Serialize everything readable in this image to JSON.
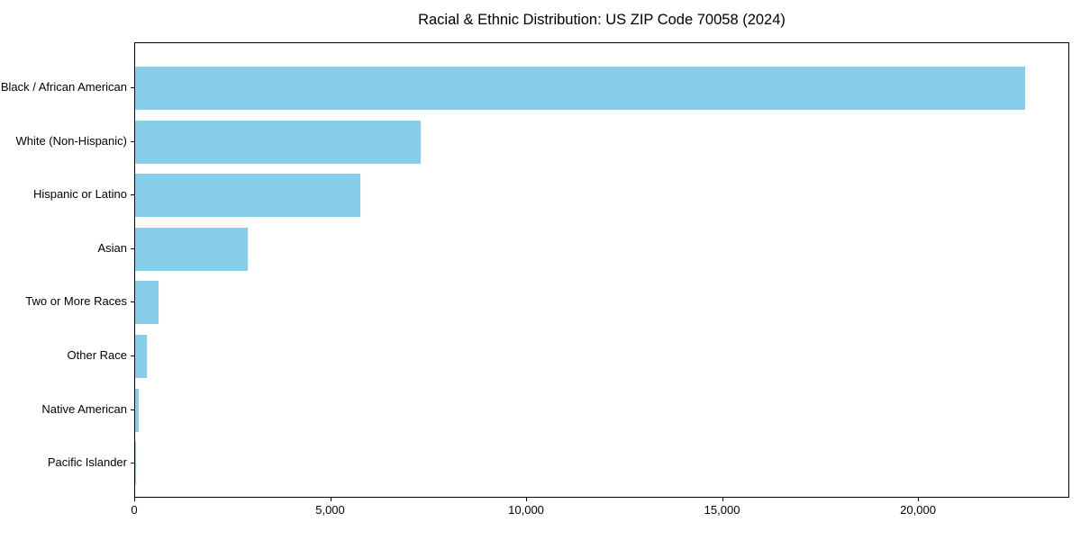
{
  "chart_data": {
    "type": "bar",
    "orientation": "horizontal",
    "title": "Racial & Ethnic Distribution: US ZIP Code 70058 (2024)",
    "categories": [
      "Black / African American",
      "White (Non-Hispanic)",
      "Hispanic or Latino",
      "Asian",
      "Two or More Races",
      "Other Race",
      "Native American",
      "Pacific Islander"
    ],
    "values": [
      22700,
      7290,
      5750,
      2870,
      600,
      290,
      90,
      10
    ],
    "xlabel": "",
    "ylabel": "",
    "xlim": [
      0,
      23860
    ],
    "xticks": {
      "values": [
        0,
        5000,
        10000,
        15000,
        20000
      ],
      "labels": [
        "0",
        "5,000",
        "10,000",
        "15,000",
        "20,000"
      ]
    },
    "grid": false,
    "legend": "none",
    "bar_color": "#87CEEB",
    "frame_color": "#000000",
    "text_color": "#000000"
  }
}
